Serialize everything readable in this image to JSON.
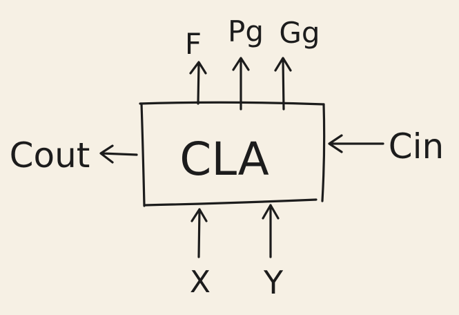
{
  "block": {
    "label": "CLA"
  },
  "outputs_top": [
    {
      "label": "F"
    },
    {
      "label": "Pg"
    },
    {
      "label": "Gg"
    }
  ],
  "inputs_bottom": [
    {
      "label": "X"
    },
    {
      "label": "Y"
    }
  ],
  "left_output": {
    "label": "Cout"
  },
  "right_input": {
    "label": "Cin"
  },
  "colors": {
    "ink": "#1c1c1c",
    "paper": "#f6f0e4"
  }
}
